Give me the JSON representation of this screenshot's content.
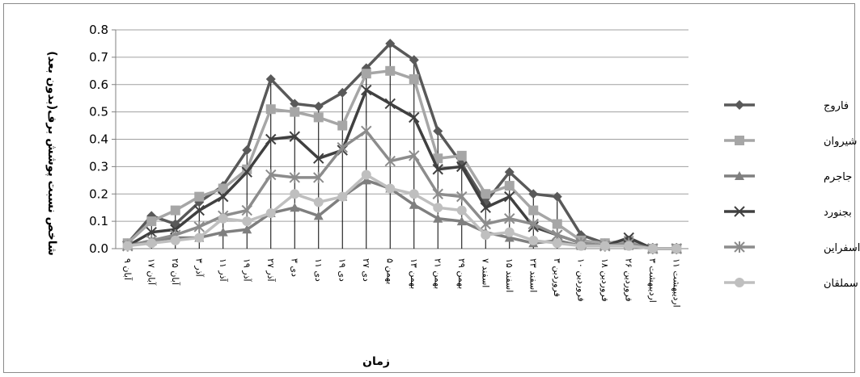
{
  "chart_data": {
    "type": "line",
    "xlabel": "زمان",
    "ylabel": "شاخص نسبت پوشش برف(بدون بعد)",
    "ylim": [
      0,
      0.8
    ],
    "y_ticks": [
      "0.0",
      "0.1",
      "0.2",
      "0.3",
      "0.4",
      "0.5",
      "0.6",
      "0.7",
      "0.8"
    ],
    "grid": "horizontal",
    "legend_position": "right",
    "categories": [
      "آبان ۹",
      "۱۷ آبان",
      "آبان ۲۵",
      "آذر ۳",
      "آذر ۱۱",
      "آذر ۱۹",
      "آذر ۲۷",
      "دی ۳",
      "دی ۱۱",
      "دی ۱۹",
      "دی ۲۷",
      "بهمن ۵",
      "بهمن ۱۳",
      "بهمن ۲۱",
      "بهمن ۲۹",
      "اسفند ۷",
      "اسفند ۱۵",
      "اسفند ۲۳",
      "فروردین ۳",
      "فروردین ۱۰",
      "فروردین ۱۸",
      "فروردین ۲۶",
      "اردیبهشت ۳",
      "اردیبهشت ۱۱"
    ],
    "series": [
      {
        "name": "فاروج",
        "color": "#595959",
        "marker": "diamond",
        "values": [
          0.02,
          0.12,
          0.09,
          0.17,
          0.23,
          0.36,
          0.62,
          0.53,
          0.52,
          0.57,
          0.66,
          0.75,
          0.69,
          0.43,
          0.31,
          0.17,
          0.28,
          0.2,
          0.19,
          0.05,
          0.02,
          0.03,
          0.0,
          0.0
        ]
      },
      {
        "name": "شیروان",
        "color": "#a6a6a6",
        "marker": "square",
        "values": [
          0.02,
          0.1,
          0.14,
          0.19,
          0.22,
          0.29,
          0.51,
          0.5,
          0.48,
          0.45,
          0.64,
          0.65,
          0.62,
          0.33,
          0.34,
          0.2,
          0.23,
          0.14,
          0.09,
          0.03,
          0.02,
          0.03,
          0.0,
          0.0
        ]
      },
      {
        "name": "جاجرم",
        "color": "#7f7f7f",
        "marker": "triangle",
        "values": [
          0.01,
          0.03,
          0.04,
          0.04,
          0.06,
          0.07,
          0.13,
          0.15,
          0.12,
          0.19,
          0.25,
          0.22,
          0.16,
          0.11,
          0.1,
          0.06,
          0.04,
          0.02,
          0.03,
          0.01,
          0.01,
          0.01,
          0.0,
          0.0
        ]
      },
      {
        "name": "بجنورد",
        "color": "#404040",
        "marker": "x",
        "values": [
          0.01,
          0.06,
          0.07,
          0.14,
          0.19,
          0.28,
          0.4,
          0.41,
          0.33,
          0.36,
          0.58,
          0.53,
          0.48,
          0.29,
          0.3,
          0.15,
          0.19,
          0.08,
          0.05,
          0.02,
          0.01,
          0.04,
          0.0,
          0.0
        ]
      },
      {
        "name": "اسفراین",
        "color": "#8c8c8c",
        "marker": "star",
        "values": [
          0.01,
          0.03,
          0.05,
          0.08,
          0.12,
          0.14,
          0.27,
          0.26,
          0.26,
          0.37,
          0.43,
          0.32,
          0.34,
          0.2,
          0.19,
          0.09,
          0.11,
          0.09,
          0.05,
          0.02,
          0.01,
          0.02,
          0.0,
          0.0
        ]
      },
      {
        "name": "مانه و سملقان",
        "color": "#bfbfbf",
        "marker": "circle",
        "values": [
          0.01,
          0.02,
          0.03,
          0.04,
          0.11,
          0.1,
          0.13,
          0.2,
          0.17,
          0.19,
          0.27,
          0.22,
          0.2,
          0.15,
          0.14,
          0.05,
          0.06,
          0.03,
          0.02,
          0.01,
          0.01,
          0.01,
          0.0,
          0.0
        ]
      }
    ]
  }
}
